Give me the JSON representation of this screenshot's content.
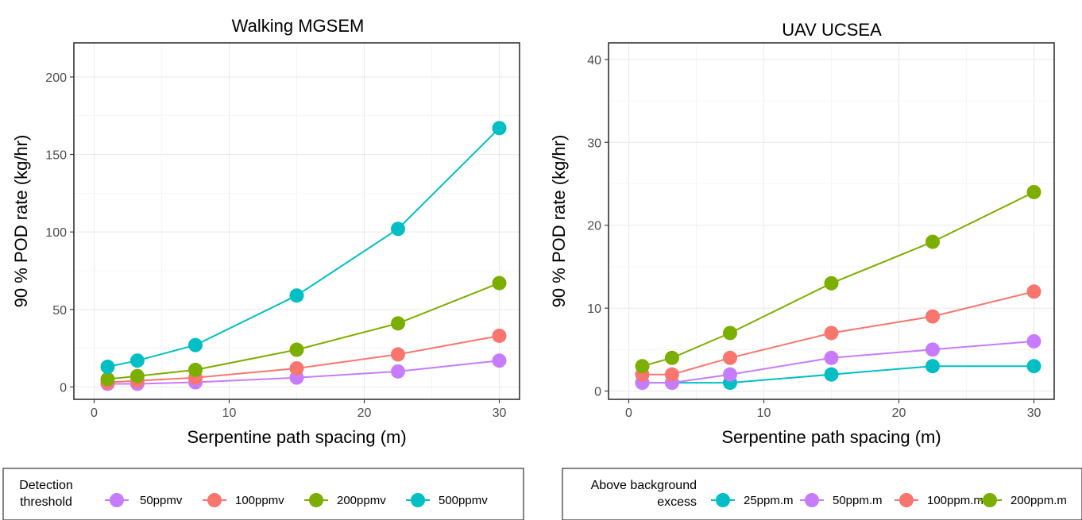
{
  "chart_data": [
    {
      "type": "line",
      "title": "Walking MGSEM",
      "xlabel": "Serpentine path spacing (m)",
      "ylabel": "90 % POD rate (kg/hr)",
      "xlim": [
        -1.5,
        31.5
      ],
      "ylim": [
        -8,
        222
      ],
      "xticks": [
        0,
        10,
        20,
        30
      ],
      "xtick_labels": [
        "0",
        "10",
        "20",
        "30"
      ],
      "yticks": [
        0,
        50,
        100,
        150,
        200
      ],
      "ytick_labels": [
        "0",
        "50",
        "100",
        "150",
        "200"
      ],
      "grid": true,
      "legend": {
        "title": [
          "Detection",
          "threshold"
        ],
        "placement": "bottom"
      },
      "x": [
        1,
        3.2,
        7.5,
        15,
        22.5,
        30
      ],
      "series": [
        {
          "name": "50ppmv",
          "color": "#C77CFF",
          "values": [
            2,
            2,
            3,
            6,
            10,
            17
          ]
        },
        {
          "name": "100ppmv",
          "color": "#F8766D",
          "values": [
            3,
            4,
            6,
            12,
            21,
            33
          ]
        },
        {
          "name": "200ppmv",
          "color": "#7CAE00",
          "values": [
            5,
            7,
            11,
            24,
            41,
            67
          ]
        },
        {
          "name": "500ppmv",
          "color": "#00BFC4",
          "values": [
            13,
            17,
            27,
            59,
            102,
            167
          ]
        }
      ]
    },
    {
      "type": "line",
      "title": "UAV UCSEA",
      "xlabel": "Serpentine path spacing (m)",
      "ylabel": "90 % POD rate (kg/hr)",
      "xlim": [
        -1.5,
        31.5
      ],
      "ylim": [
        -1,
        42
      ],
      "xticks": [
        0,
        10,
        20,
        30
      ],
      "xtick_labels": [
        "0",
        "10",
        "20",
        "30"
      ],
      "yticks": [
        0,
        10,
        20,
        30,
        40
      ],
      "ytick_labels": [
        "0",
        "10",
        "20",
        "30",
        "40"
      ],
      "grid": true,
      "legend": {
        "title": [
          "Above background",
          "excess"
        ],
        "placement": "bottom"
      },
      "x": [
        1,
        3.2,
        7.5,
        15,
        22.5,
        30
      ],
      "series": [
        {
          "name": "25ppm.m",
          "color": "#00BFC4",
          "values": [
            1,
            1,
            1,
            2,
            3,
            3
          ]
        },
        {
          "name": "50ppm.m",
          "color": "#C77CFF",
          "values": [
            1,
            1,
            2,
            4,
            5,
            6
          ]
        },
        {
          "name": "100ppm.m",
          "color": "#F8766D",
          "values": [
            2,
            2,
            4,
            7,
            9,
            12
          ]
        },
        {
          "name": "200ppm.m",
          "color": "#7CAE00",
          "values": [
            3,
            4,
            7,
            13,
            18,
            24
          ]
        }
      ]
    }
  ]
}
